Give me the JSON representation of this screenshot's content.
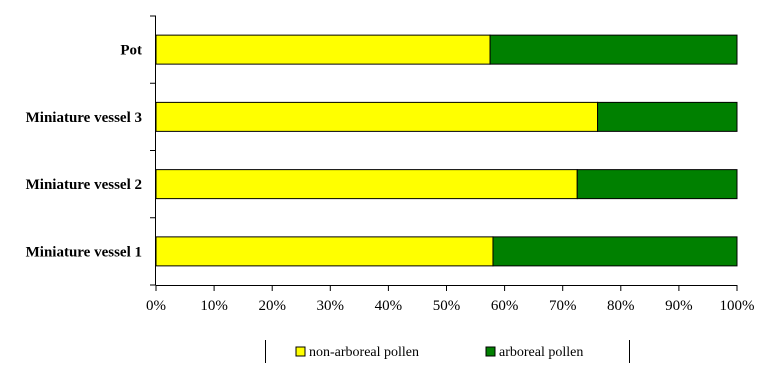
{
  "chart_data": {
    "type": "bar",
    "orientation": "horizontal",
    "stacked": "percent",
    "categories": [
      "Miniature vessel 1",
      "Miniature vessel 2",
      "Miniature vessel 3",
      "Pot"
    ],
    "series": [
      {
        "name": "non-arboreal pollen",
        "color": "#ffff00",
        "values": [
          58,
          72.5,
          76,
          57.5
        ]
      },
      {
        "name": "arboreal pollen",
        "color": "#008000",
        "values": [
          42,
          27.5,
          24,
          42.5
        ]
      }
    ],
    "x_ticks": [
      "0%",
      "10%",
      "20%",
      "30%",
      "40%",
      "50%",
      "60%",
      "70%",
      "80%",
      "90%",
      "100%"
    ],
    "xlim": [
      0,
      100
    ],
    "grid": false,
    "legend_position": "bottom"
  }
}
